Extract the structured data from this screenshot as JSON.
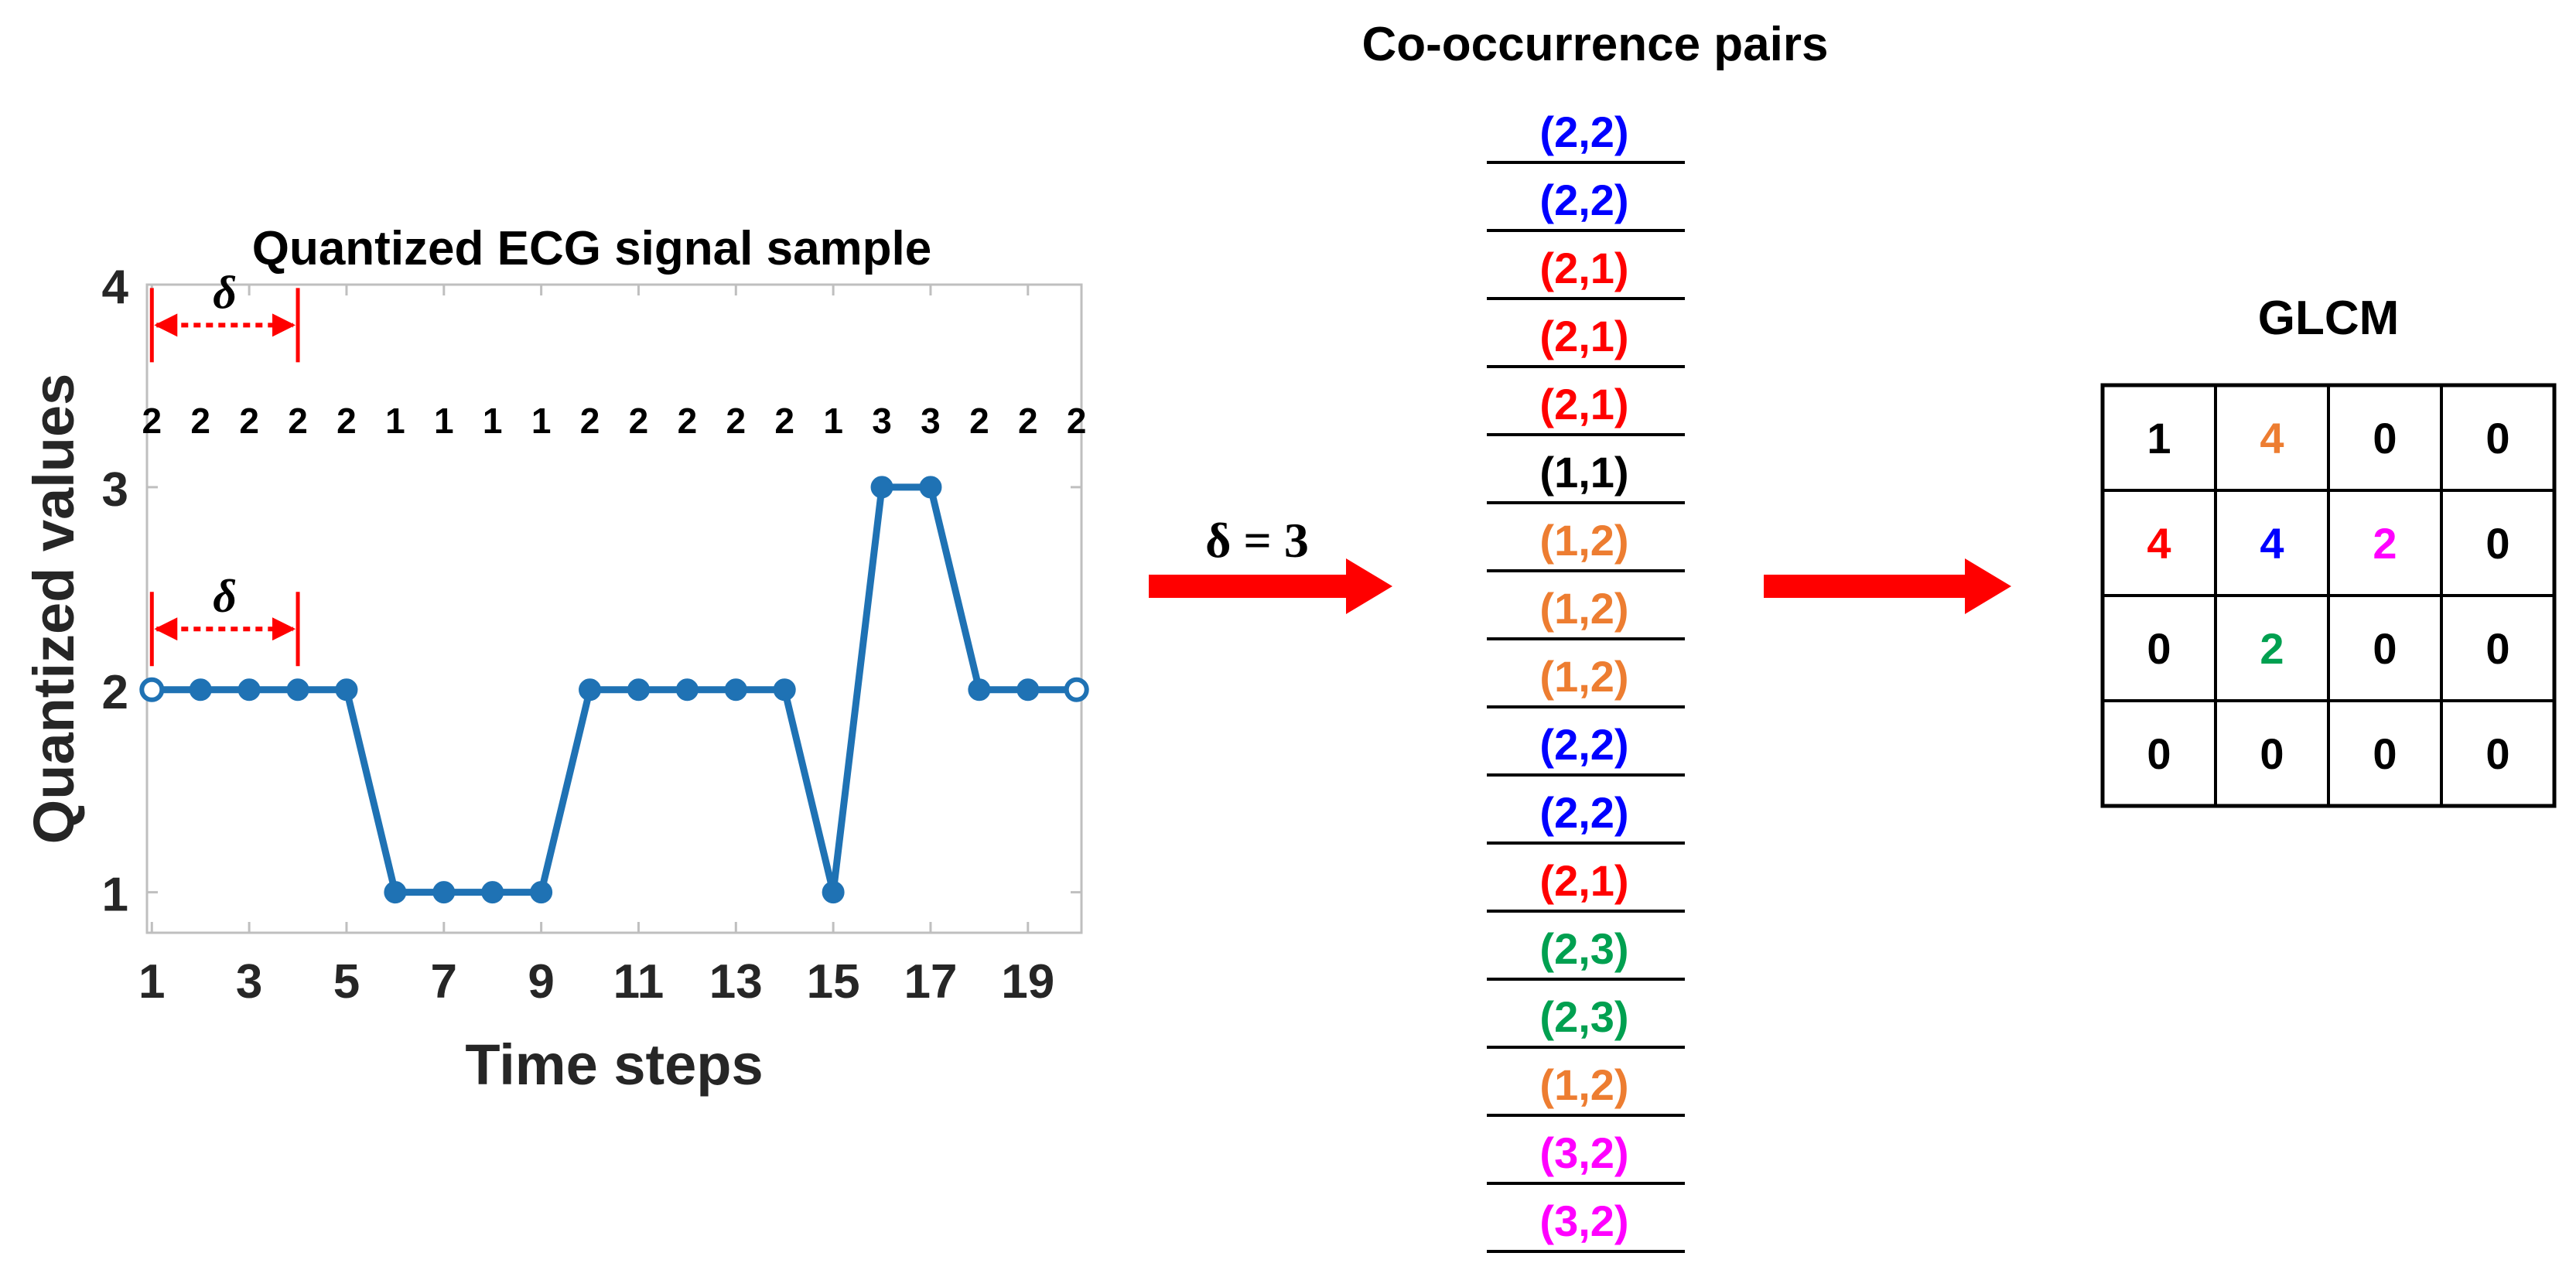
{
  "colors": {
    "line": "#1f72b4",
    "accent_red": "#ff0000",
    "blue": "#0000ff",
    "red": "#ff0000",
    "black": "#000000",
    "orange": "#ed7d31",
    "green": "#00a050",
    "magenta": "#ff00ff",
    "axis": "#262626"
  },
  "chart_data": {
    "type": "line",
    "title": "Quantized ECG signal sample",
    "xlabel": "Time steps",
    "ylabel": "Quantized values",
    "x": [
      1,
      2,
      3,
      4,
      5,
      6,
      7,
      8,
      9,
      10,
      11,
      12,
      13,
      14,
      15,
      16,
      17,
      18,
      19,
      20
    ],
    "y": [
      2,
      2,
      2,
      2,
      2,
      1,
      1,
      1,
      1,
      2,
      2,
      2,
      2,
      2,
      1,
      3,
      3,
      2,
      2,
      2
    ],
    "xlim": [
      0.9,
      20.1
    ],
    "ylim": [
      0.8,
      4
    ],
    "xticks": [
      "1",
      "3",
      "5",
      "7",
      "9",
      "11",
      "13",
      "15",
      "17",
      "19"
    ],
    "yticks": [
      "1",
      "2",
      "3",
      "4"
    ],
    "value_labels": [
      "2",
      "2",
      "2",
      "2",
      "2",
      "1",
      "1",
      "1",
      "1",
      "2",
      "2",
      "2",
      "2",
      "2",
      "1",
      "3",
      "3",
      "2",
      "2",
      "2"
    ],
    "delta_marks": [
      {
        "label": "δ",
        "from": 1,
        "to": 4,
        "y": 3.8
      },
      {
        "label": "δ",
        "from": 1,
        "to": 4,
        "y": 2.3
      }
    ]
  },
  "arrow1_label": "δ = 3",
  "pairs": {
    "title": "Co-occurrence pairs",
    "items": [
      {
        "text": "(2,2)",
        "color": "blue"
      },
      {
        "text": "(2,2)",
        "color": "blue"
      },
      {
        "text": "(2,1)",
        "color": "red"
      },
      {
        "text": "(2,1)",
        "color": "red"
      },
      {
        "text": "(2,1)",
        "color": "red"
      },
      {
        "text": "(1,1)",
        "color": "black"
      },
      {
        "text": "(1,2)",
        "color": "orange"
      },
      {
        "text": "(1,2)",
        "color": "orange"
      },
      {
        "text": "(1,2)",
        "color": "orange"
      },
      {
        "text": "(2,2)",
        "color": "blue"
      },
      {
        "text": "(2,2)",
        "color": "blue"
      },
      {
        "text": "(2,1)",
        "color": "red"
      },
      {
        "text": "(2,3)",
        "color": "green"
      },
      {
        "text": "(2,3)",
        "color": "green"
      },
      {
        "text": "(1,2)",
        "color": "orange"
      },
      {
        "text": "(3,2)",
        "color": "magenta"
      },
      {
        "text": "(3,2)",
        "color": "magenta"
      }
    ]
  },
  "glcm": {
    "title": "GLCM",
    "rows": [
      [
        {
          "v": "1",
          "c": "black"
        },
        {
          "v": "4",
          "c": "orange"
        },
        {
          "v": "0",
          "c": "black"
        },
        {
          "v": "0",
          "c": "black"
        }
      ],
      [
        {
          "v": "4",
          "c": "red"
        },
        {
          "v": "4",
          "c": "blue"
        },
        {
          "v": "2",
          "c": "magenta"
        },
        {
          "v": "0",
          "c": "black"
        }
      ],
      [
        {
          "v": "0",
          "c": "black"
        },
        {
          "v": "2",
          "c": "green"
        },
        {
          "v": "0",
          "c": "black"
        },
        {
          "v": "0",
          "c": "black"
        }
      ],
      [
        {
          "v": "0",
          "c": "black"
        },
        {
          "v": "0",
          "c": "black"
        },
        {
          "v": "0",
          "c": "black"
        },
        {
          "v": "0",
          "c": "black"
        }
      ]
    ]
  }
}
